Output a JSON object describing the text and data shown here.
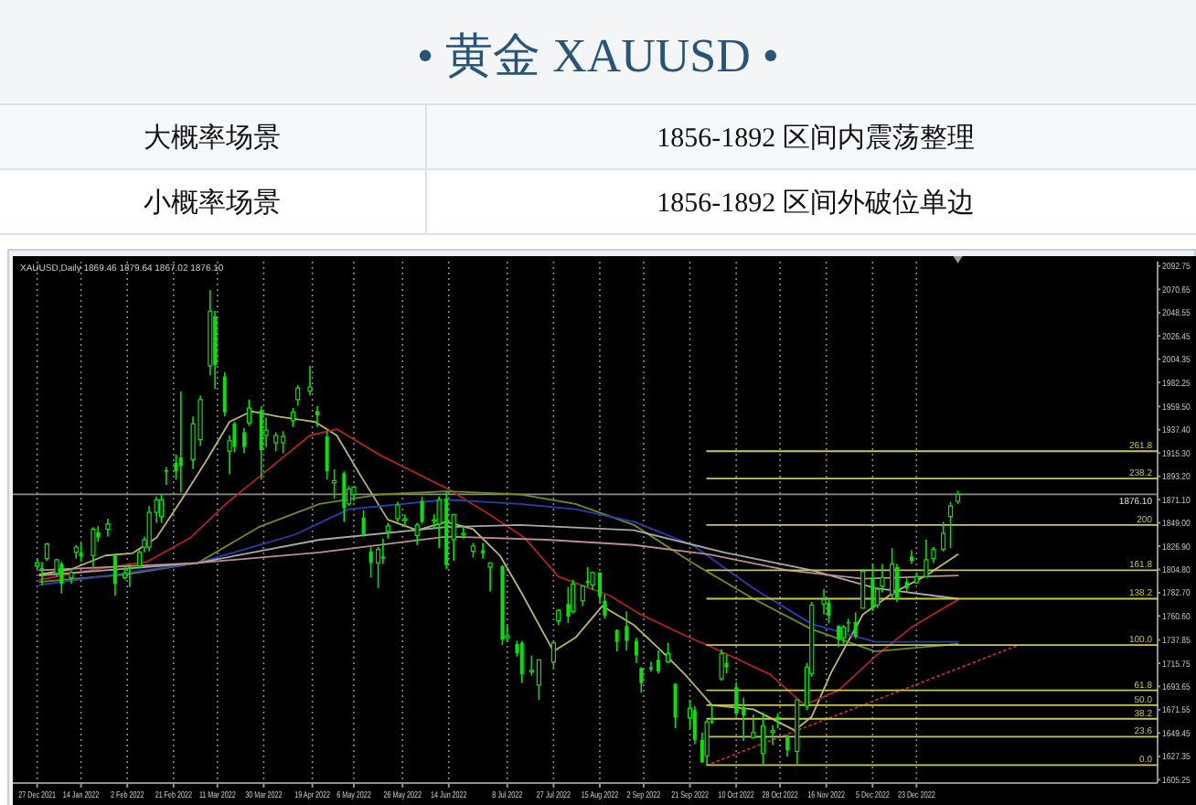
{
  "chart_data": [
    {
      "type": "other",
      "title": "• 黄金 XAUUSD •",
      "annotations": [
        "大概率场景",
        "1856-1892 区间内震荡整理",
        "小概率场景",
        "1856-1892 区间外破位单边"
      ]
    },
    {
      "type": "candlestick",
      "annotations": [
        "XAUUSD,Daily  1869.46 1879.64 1867.02 1876.10"
      ],
      "color": "#00e600",
      "x": [
        "2021-12-27",
        "2021-12-29",
        "2021-12-31",
        "2022-01-04",
        "2022-01-06",
        "2022-01-10",
        "2022-01-12",
        "2022-01-14",
        "2022-01-19",
        "2022-01-21",
        "2022-01-25",
        "2022-01-28",
        "2022-02-01",
        "2022-02-03",
        "2022-02-07",
        "2022-02-09",
        "2022-02-11",
        "2022-02-14",
        "2022-02-16",
        "2022-02-18",
        "2022-02-22",
        "2022-02-24",
        "2022-03-01",
        "2022-03-04",
        "2022-03-08",
        "2022-03-10",
        "2022-03-14",
        "2022-03-16",
        "2022-03-18",
        "2022-03-22",
        "2022-03-24",
        "2022-03-29",
        "2022-03-31",
        "2022-04-04",
        "2022-04-07",
        "2022-04-11",
        "2022-04-13",
        "2022-04-18",
        "2022-04-21",
        "2022-04-25",
        "2022-04-28",
        "2022-05-02",
        "2022-05-04",
        "2022-05-06",
        "2022-05-10",
        "2022-05-13",
        "2022-05-16",
        "2022-05-18",
        "2022-05-20",
        "2022-05-24",
        "2022-05-27",
        "2022-06-01",
        "2022-06-03",
        "2022-06-08",
        "2022-06-10",
        "2022-06-13",
        "2022-06-16",
        "2022-06-20",
        "2022-06-24",
        "2022-06-28",
        "2022-07-01",
        "2022-07-06",
        "2022-07-08",
        "2022-07-12",
        "2022-07-14",
        "2022-07-18",
        "2022-07-21",
        "2022-07-27",
        "2022-07-29",
        "2022-08-02",
        "2022-08-04",
        "2022-08-08",
        "2022-08-10",
        "2022-08-12",
        "2022-08-15",
        "2022-08-17",
        "2022-08-22",
        "2022-08-26",
        "2022-08-30",
        "2022-09-01",
        "2022-09-05",
        "2022-09-08",
        "2022-09-12",
        "2022-09-15",
        "2022-09-21",
        "2022-09-23",
        "2022-09-26",
        "2022-09-28",
        "2022-09-30",
        "2022-10-04",
        "2022-10-06",
        "2022-10-10",
        "2022-10-13",
        "2022-10-17",
        "2022-10-21",
        "2022-10-25",
        "2022-10-27",
        "2022-10-31",
        "2022-11-04",
        "2022-11-08",
        "2022-11-10",
        "2022-11-15",
        "2022-11-17",
        "2022-11-21",
        "2022-11-23",
        "2022-11-25",
        "2022-11-28",
        "2022-12-01",
        "2022-12-05",
        "2022-12-07",
        "2022-12-09",
        "2022-12-13",
        "2022-12-15",
        "2022-12-19",
        "2022-12-21",
        "2022-12-23",
        "2022-12-27",
        "2022-12-30",
        "2023-01-03",
        "2023-01-06",
        "2023-01-09"
      ],
      "ohlc": [
        [
          1808,
          1815,
          1805,
          1811
        ],
        [
          1806,
          1812,
          1790,
          1805
        ],
        [
          1815,
          1830,
          1813,
          1829
        ],
        [
          1801,
          1815,
          1798,
          1814
        ],
        [
          1810,
          1812,
          1782,
          1791
        ],
        [
          1797,
          1804,
          1791,
          1802
        ],
        [
          1821,
          1828,
          1815,
          1826
        ],
        [
          1821,
          1830,
          1812,
          1817
        ],
        [
          1818,
          1845,
          1806,
          1843
        ],
        [
          1840,
          1846,
          1831,
          1835
        ],
        [
          1843,
          1853,
          1836,
          1848
        ],
        [
          1818,
          1820,
          1780,
          1791
        ],
        [
          1797,
          1807,
          1795,
          1801
        ],
        [
          1807,
          1810,
          1788,
          1805
        ],
        [
          1808,
          1823,
          1806,
          1821
        ],
        [
          1826,
          1836,
          1821,
          1833
        ],
        [
          1826,
          1865,
          1822,
          1859
        ],
        [
          1859,
          1874,
          1849,
          1871
        ],
        [
          1855,
          1876,
          1849,
          1871
        ],
        [
          1899,
          1902,
          1885,
          1898
        ],
        [
          1906,
          1914,
          1890,
          1898
        ],
        [
          1911,
          1974,
          1878,
          1903
        ],
        [
          1909,
          1950,
          1900,
          1943
        ],
        [
          1928,
          1970,
          1922,
          1966
        ],
        [
          1998,
          2070,
          1989,
          2050
        ],
        [
          2045,
          2050,
          1976,
          1999
        ],
        [
          1988,
          1992,
          1950,
          1954
        ],
        [
          1917,
          1932,
          1895,
          1927
        ],
        [
          1943,
          1945,
          1916,
          1921
        ],
        [
          1935,
          1939,
          1915,
          1921
        ],
        [
          1944,
          1966,
          1941,
          1958
        ],
        [
          1956,
          1960,
          1890,
          1918
        ],
        [
          1932,
          1949,
          1921,
          1937
        ],
        [
          1925,
          1935,
          1917,
          1932
        ],
        [
          1925,
          1936,
          1915,
          1931
        ],
        [
          1946,
          1958,
          1940,
          1954
        ],
        [
          1966,
          1980,
          1960,
          1977
        ],
        [
          1974,
          1998,
          1970,
          1978
        ],
        [
          1955,
          1960,
          1940,
          1951
        ],
        [
          1931,
          1936,
          1890,
          1898
        ],
        [
          1887,
          1900,
          1872,
          1889
        ],
        [
          1896,
          1898,
          1850,
          1863
        ],
        [
          1867,
          1884,
          1865,
          1881
        ],
        [
          1876,
          1884,
          1870,
          1883
        ],
        [
          1854,
          1861,
          1836,
          1838
        ],
        [
          1822,
          1826,
          1797,
          1811
        ],
        [
          1811,
          1826,
          1787,
          1824
        ],
        [
          1817,
          1834,
          1810,
          1815
        ],
        [
          1841,
          1849,
          1834,
          1846
        ],
        [
          1853,
          1869,
          1850,
          1866
        ],
        [
          1852,
          1857,
          1845,
          1853
        ],
        [
          1837,
          1849,
          1828,
          1847
        ],
        [
          1870,
          1874,
          1848,
          1850
        ],
        [
          1852,
          1857,
          1843,
          1852
        ],
        [
          1848,
          1874,
          1825,
          1871
        ],
        [
          1872,
          1879,
          1805,
          1809
        ],
        [
          1833,
          1857,
          1813,
          1857
        ],
        [
          1838,
          1845,
          1834,
          1839
        ],
        [
          1822,
          1830,
          1816,
          1827
        ],
        [
          1823,
          1830,
          1815,
          1820
        ],
        [
          1807,
          1811,
          1784,
          1811
        ],
        [
          1808,
          1809,
          1733,
          1738
        ],
        [
          1740,
          1752,
          1736,
          1742
        ],
        [
          1734,
          1737,
          1722,
          1725
        ],
        [
          1735,
          1737,
          1697,
          1705
        ],
        [
          1708,
          1723,
          1704,
          1709
        ],
        [
          1695,
          1719,
          1681,
          1719
        ],
        [
          1717,
          1737,
          1711,
          1735
        ],
        [
          1756,
          1767,
          1752,
          1766
        ],
        [
          1772,
          1788,
          1754,
          1760
        ],
        [
          1765,
          1795,
          1763,
          1791
        ],
        [
          1775,
          1790,
          1770,
          1789
        ],
        [
          1794,
          1807,
          1788,
          1792
        ],
        [
          1790,
          1802,
          1785,
          1802
        ],
        [
          1802,
          1802,
          1773,
          1779
        ],
        [
          1775,
          1781,
          1758,
          1761
        ],
        [
          1747,
          1748,
          1727,
          1736
        ],
        [
          1751,
          1765,
          1728,
          1737
        ],
        [
          1737,
          1740,
          1716,
          1723
        ],
        [
          1711,
          1712,
          1688,
          1697
        ],
        [
          1712,
          1717,
          1708,
          1710
        ],
        [
          1719,
          1728,
          1706,
          1708
        ],
        [
          1717,
          1735,
          1716,
          1725
        ],
        [
          1696,
          1697,
          1654,
          1664
        ],
        [
          1664,
          1681,
          1654,
          1673
        ],
        [
          1671,
          1675,
          1639,
          1643
        ],
        [
          1643,
          1650,
          1621,
          1622
        ],
        [
          1628,
          1662,
          1619,
          1660
        ],
        [
          1661,
          1676,
          1658,
          1660
        ],
        [
          1701,
          1729,
          1699,
          1725
        ],
        [
          1716,
          1724,
          1706,
          1712
        ],
        [
          1693,
          1698,
          1665,
          1668
        ],
        [
          1674,
          1683,
          1642,
          1666
        ],
        [
          1645,
          1667,
          1645,
          1650
        ],
        [
          1630,
          1669,
          1620,
          1656
        ],
        [
          1650,
          1657,
          1638,
          1652
        ],
        [
          1665,
          1668,
          1654,
          1663
        ],
        [
          1645,
          1648,
          1627,
          1633
        ],
        [
          1632,
          1681,
          1620,
          1681
        ],
        [
          1675,
          1716,
          1671,
          1712
        ],
        [
          1706,
          1774,
          1703,
          1771
        ],
        [
          1772,
          1786,
          1762,
          1776
        ],
        [
          1773,
          1777,
          1754,
          1761
        ],
        [
          1751,
          1752,
          1731,
          1738
        ],
        [
          1740,
          1752,
          1733,
          1750
        ],
        [
          1755,
          1758,
          1745,
          1754
        ],
        [
          1755,
          1764,
          1739,
          1741
        ],
        [
          1768,
          1805,
          1768,
          1803
        ],
        [
          1797,
          1810,
          1765,
          1768
        ],
        [
          1771,
          1788,
          1768,
          1786
        ],
        [
          1789,
          1810,
          1783,
          1797
        ],
        [
          1781,
          1825,
          1778,
          1810
        ],
        [
          1807,
          1810,
          1774,
          1777
        ],
        [
          1793,
          1797,
          1783,
          1787
        ],
        [
          1817,
          1823,
          1810,
          1813
        ],
        [
          1792,
          1802,
          1792,
          1798
        ],
        [
          1798,
          1833,
          1797,
          1814
        ],
        [
          1815,
          1826,
          1811,
          1824
        ],
        [
          1824,
          1850,
          1822,
          1839
        ],
        [
          1855,
          1869,
          1825,
          1865
        ],
        [
          1869.46,
          1879.64,
          1867.02,
          1876.1
        ]
      ],
      "xlim": [
        "2021-12-17",
        "2023-04-01"
      ],
      "xticks": [
        {
          "value": "2021-12-27",
          "label": "27 Dec 2021"
        },
        {
          "value": "2022-01-14",
          "label": "14 Jan 2022"
        },
        {
          "value": "2022-02-02",
          "label": "2 Feb 2022"
        },
        {
          "value": "2022-02-21",
          "label": "21 Feb 2022"
        },
        {
          "value": "2022-03-11",
          "label": "11 Mar 2022"
        },
        {
          "value": "2022-03-30",
          "label": "30 Mar 2022"
        },
        {
          "value": "2022-04-19",
          "label": "19 Apr 2022"
        },
        {
          "value": "2022-05-06",
          "label": "6 May 2022"
        },
        {
          "value": "2022-05-26",
          "label": "26 May 2022"
        },
        {
          "value": "2022-06-14",
          "label": "14 Jun 2022"
        },
        {
          "value": "2022-07-08",
          "label": "8 Jul 2022"
        },
        {
          "value": "2022-07-27",
          "label": "27 Jul 2022"
        },
        {
          "value": "2022-08-15",
          "label": "15 Aug 2022"
        },
        {
          "value": "2022-09-02",
          "label": "2 Sep 2022"
        },
        {
          "value": "2022-09-21",
          "label": "21 Sep 2022"
        },
        {
          "value": "2022-10-10",
          "label": "10 Oct 2022"
        },
        {
          "value": "2022-10-28",
          "label": "28 Oct 2022"
        },
        {
          "value": "2022-11-16",
          "label": "16 Nov 2022"
        },
        {
          "value": "2022-12-05",
          "label": "5 Dec 2022"
        },
        {
          "value": "2022-12-23",
          "label": "23 Dec 2022"
        }
      ],
      "ylim": [
        1602,
        2097
      ],
      "yticks": [
        1605.25,
        1627.35,
        1649.45,
        1671.55,
        1693.65,
        1715.75,
        1737.85,
        {
          "value": 1760.6,
          "label": "1760.60"
        },
        {
          "value": 1782.7,
          "label": "1782.70"
        },
        {
          "value": 1804.8,
          "label": "1804.80"
        },
        {
          "value": 1826.9,
          "label": "1826.90"
        },
        {
          "value": 1849,
          "label": "1849.00"
        },
        {
          "value": 1871.1,
          "label": "1871.10"
        },
        {
          "value": 1893.2,
          "label": "1893.20"
        },
        {
          "value": 1915.3,
          "label": "1915.30"
        },
        {
          "value": 1937.4,
          "label": "1937.40"
        },
        {
          "value": 1959.5,
          "label": "1959.50"
        },
        1982.25,
        2004.35,
        2026.45,
        2048.55,
        2070.65,
        2092.75
      ],
      "grid": "x",
      "ref_lines": [
        {
          "axis": "y",
          "value": 1876.1,
          "label": "1876.10",
          "color": "#8c8c8c"
        }
      ],
      "series": [
        {
          "type": "line",
          "color": "#bdb76b",
          "x": [
            "2021-12-28",
            "2022-01-10",
            "2022-01-24",
            "2022-02-04",
            "2022-02-14",
            "2022-02-24",
            "2022-03-07",
            "2022-03-16",
            "2022-03-25",
            "2022-04-05",
            "2022-04-20",
            "2022-04-29",
            "2022-05-09",
            "2022-05-20",
            "2022-06-01",
            "2022-06-13",
            "2022-06-24",
            "2022-07-05",
            "2022-07-14",
            "2022-07-27",
            "2022-08-05",
            "2022-08-16",
            "2022-08-29",
            "2022-09-09",
            "2022-09-19",
            "2022-09-30",
            "2022-10-17",
            "2022-11-03",
            "2022-11-10",
            "2022-11-18",
            "2022-12-01",
            "2022-12-13",
            "2022-12-27",
            "2023-01-09"
          ],
          "values": [
            1800,
            1805,
            1818,
            1820,
            1835,
            1870,
            1910,
            1945,
            1955,
            1950,
            1945,
            1932,
            1893,
            1852,
            1842,
            1850,
            1843,
            1818,
            1782,
            1727,
            1740,
            1770,
            1752,
            1728,
            1705,
            1676,
            1672,
            1652,
            1665,
            1707,
            1762,
            1782,
            1799,
            1819
          ]
        },
        {
          "type": "line",
          "color": "#b22222",
          "x": [
            "2021-12-28",
            "2022-01-20",
            "2022-02-10",
            "2022-02-28",
            "2022-03-15",
            "2022-04-01",
            "2022-04-18",
            "2022-04-29",
            "2022-05-17",
            "2022-06-13",
            "2022-06-30",
            "2022-07-15",
            "2022-07-29",
            "2022-08-19",
            "2022-08-31",
            "2022-09-19",
            "2022-09-30",
            "2022-10-24",
            "2022-11-07",
            "2022-11-21",
            "2022-12-06",
            "2022-12-21",
            "2023-01-09"
          ],
          "values": [
            1795,
            1805,
            1812,
            1835,
            1868,
            1900,
            1932,
            1938,
            1913,
            1882,
            1858,
            1835,
            1798,
            1780,
            1763,
            1742,
            1731,
            1705,
            1676,
            1690,
            1722,
            1750,
            1776
          ]
        },
        {
          "type": "line",
          "color": "#6b8e23",
          "x": [
            "2021-12-28",
            "2022-02-01",
            "2022-03-03",
            "2022-03-28",
            "2022-04-22",
            "2022-05-17",
            "2022-06-13",
            "2022-07-13",
            "2022-08-05",
            "2022-08-29",
            "2022-09-22",
            "2022-10-17",
            "2022-11-10",
            "2022-12-06",
            "2023-01-09"
          ],
          "values": [
            1793,
            1800,
            1811,
            1845,
            1867,
            1876,
            1879,
            1876,
            1867,
            1847,
            1811,
            1777,
            1748,
            1727,
            1734
          ]
        },
        {
          "type": "line",
          "color": "#2a3cb4",
          "x": [
            "2021-12-28",
            "2022-03-03",
            "2022-04-12",
            "2022-05-04",
            "2022-06-13",
            "2022-07-13",
            "2022-08-05",
            "2022-08-29",
            "2022-09-22",
            "2022-10-17",
            "2022-11-10",
            "2022-12-06",
            "2023-01-09"
          ],
          "values": [
            1790,
            1811,
            1838,
            1862,
            1871,
            1867,
            1862,
            1850,
            1828,
            1787,
            1753,
            1736,
            1736
          ]
        },
        {
          "type": "line",
          "color": "#a9a9a9",
          "x": [
            "2021-12-28",
            "2022-03-03",
            "2022-04-22",
            "2022-06-13",
            "2022-07-13",
            "2022-08-29",
            "2022-10-05",
            "2022-11-10",
            "2022-12-06",
            "2023-01-09"
          ],
          "values": [
            1799,
            1811,
            1833,
            1845,
            1847,
            1842,
            1821,
            1804,
            1787,
            1777
          ]
        },
        {
          "type": "line",
          "color": "#bc8f8f",
          "x": [
            "2021-12-28",
            "2022-03-03",
            "2022-04-22",
            "2022-06-13",
            "2022-07-24",
            "2022-08-29",
            "2022-09-29",
            "2022-10-31",
            "2022-12-01",
            "2023-01-09"
          ],
          "values": [
            1804,
            1811,
            1821,
            1836,
            1833,
            1828,
            1819,
            1804,
            1796,
            1799
          ]
        },
        {
          "type": "line",
          "color": "#c03030",
          "line_style": "dotted",
          "x": [
            "2022-09-28",
            "2023-02-03"
          ],
          "values": [
            1619,
            1733
          ]
        },
        {
          "type": "line",
          "name": "261.8",
          "color": "#c8c850",
          "x": [
            "2022-09-28",
            "2023-04-01"
          ],
          "values": [
            1917,
            1917
          ]
        },
        {
          "type": "line",
          "name": "238.2",
          "color": "#c8c850",
          "x": [
            "2022-09-28",
            "2023-04-01"
          ],
          "values": [
            1891,
            1891
          ]
        },
        {
          "type": "line",
          "name": "200",
          "color": "#c8c850",
          "x": [
            "2022-09-28",
            "2023-04-01"
          ],
          "values": [
            1847,
            1847
          ]
        },
        {
          "type": "line",
          "name": "161.8",
          "color": "#c8c850",
          "x": [
            "2022-09-28",
            "2023-04-01"
          ],
          "values": [
            1804,
            1804
          ]
        },
        {
          "type": "line",
          "name": "138.2",
          "color": "#c8c850",
          "x": [
            "2022-09-28",
            "2023-04-01"
          ],
          "values": [
            1777,
            1777
          ]
        },
        {
          "type": "line",
          "name": "100.0",
          "color": "#c8c850",
          "x": [
            "2022-09-28",
            "2023-04-01"
          ],
          "values": [
            1733,
            1733
          ]
        },
        {
          "type": "line",
          "name": "61.8",
          "color": "#c8c850",
          "x": [
            "2022-09-28",
            "2023-04-01"
          ],
          "values": [
            1690,
            1690
          ]
        },
        {
          "type": "line",
          "name": "50.0",
          "color": "#c8c850",
          "x": [
            "2022-09-28",
            "2023-04-01"
          ],
          "values": [
            1676,
            1676
          ]
        },
        {
          "type": "line",
          "name": "38.2",
          "color": "#c8c850",
          "x": [
            "2022-09-28",
            "2023-04-01"
          ],
          "values": [
            1663,
            1663
          ]
        },
        {
          "type": "line",
          "name": "23.6",
          "color": "#c8c850",
          "x": [
            "2022-09-28",
            "2023-04-01"
          ],
          "values": [
            1646,
            1646
          ]
        },
        {
          "type": "line",
          "name": "0.0",
          "color": "#c8c850",
          "x": [
            "2022-09-28",
            "2023-04-01"
          ],
          "values": [
            1619,
            1619
          ]
        }
      ]
    }
  ]
}
